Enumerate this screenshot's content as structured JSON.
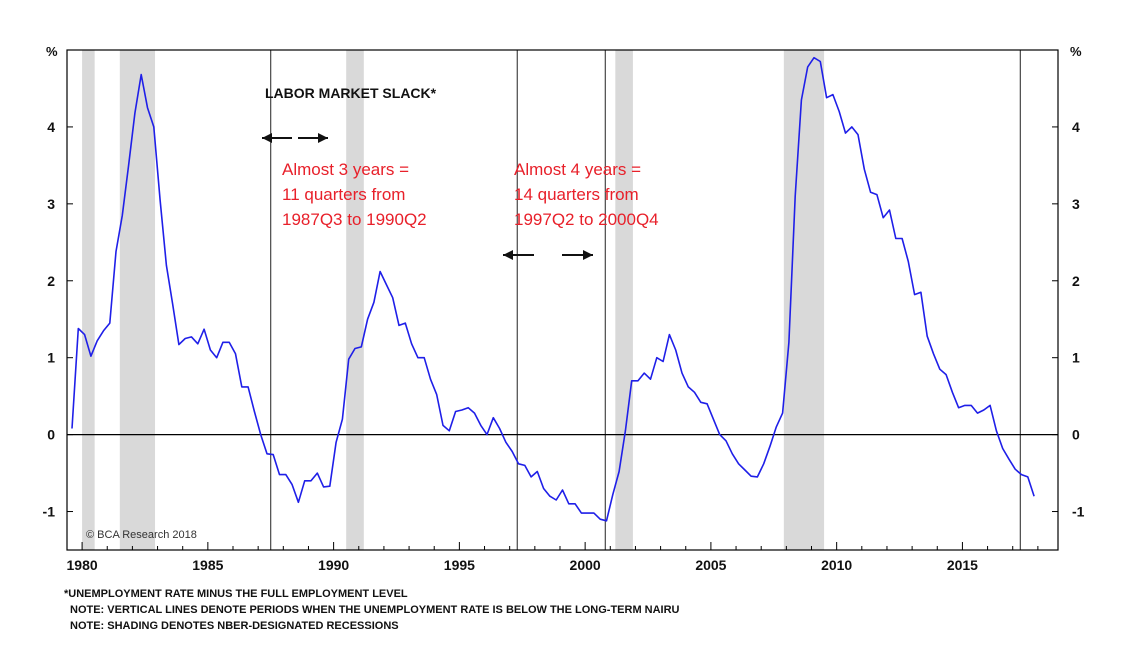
{
  "chart_data": {
    "type": "line",
    "title": "LABOR MARKET SLACK*",
    "y_unit_left": "%",
    "y_unit_right": "%",
    "ylim": [
      -1.5,
      5.0
    ],
    "xlim": [
      1979.4,
      2018.8
    ],
    "yticks": [
      -1,
      0,
      1,
      2,
      3,
      4
    ],
    "xticks": [
      1980,
      1985,
      1990,
      1995,
      2000,
      2005,
      2010,
      2015
    ],
    "grid": false,
    "series": [
      {
        "color": "#1f1fe8",
        "x": [
          1979.6,
          1979.85,
          1980.1,
          1980.35,
          1980.6,
          1980.85,
          1981.1,
          1981.35,
          1981.6,
          1981.85,
          1982.1,
          1982.35,
          1982.6,
          1982.85,
          1983.1,
          1983.35,
          1983.6,
          1983.85,
          1984.1,
          1984.35,
          1984.6,
          1984.85,
          1985.1,
          1985.35,
          1985.6,
          1985.85,
          1986.1,
          1986.35,
          1986.6,
          1986.85,
          1987.1,
          1987.35,
          1987.6,
          1987.85,
          1988.1,
          1988.35,
          1988.6,
          1988.85,
          1989.1,
          1989.35,
          1989.6,
          1989.85,
          1990.1,
          1990.35,
          1990.6,
          1990.85,
          1991.1,
          1991.35,
          1991.6,
          1991.85,
          1992.1,
          1992.35,
          1992.6,
          1992.85,
          1993.1,
          1993.35,
          1993.6,
          1993.85,
          1994.1,
          1994.35,
          1994.6,
          1994.85,
          1995.1,
          1995.35,
          1995.6,
          1995.85,
          1996.1,
          1996.35,
          1996.6,
          1996.85,
          1997.1,
          1997.35,
          1997.6,
          1997.85,
          1998.1,
          1998.35,
          1998.6,
          1998.85,
          1999.1,
          1999.35,
          1999.6,
          1999.85,
          2000.1,
          2000.35,
          2000.6,
          2000.85,
          2001.1,
          2001.35,
          2001.6,
          2001.85,
          2002.1,
          2002.35,
          2002.6,
          2002.85,
          2003.1,
          2003.35,
          2003.6,
          2003.85,
          2004.1,
          2004.35,
          2004.6,
          2004.85,
          2005.1,
          2005.35,
          2005.6,
          2005.85,
          2006.1,
          2006.35,
          2006.6,
          2006.85,
          2007.1,
          2007.35,
          2007.6,
          2007.85,
          2008.1,
          2008.35,
          2008.6,
          2008.85,
          2009.1,
          2009.35,
          2009.6,
          2009.85,
          2010.1,
          2010.35,
          2010.6,
          2010.85,
          2011.1,
          2011.35,
          2011.6,
          2011.85,
          2012.1,
          2012.35,
          2012.6,
          2012.85,
          2013.1,
          2013.35,
          2013.6,
          2013.85,
          2014.1,
          2014.35,
          2014.6,
          2014.85,
          2015.1,
          2015.35,
          2015.6,
          2015.85,
          2016.1,
          2016.35,
          2016.6,
          2016.85,
          2017.1,
          2017.35,
          2017.6,
          2017.85
        ],
        "y": [
          0.08,
          1.38,
          1.3,
          1.02,
          1.22,
          1.35,
          1.45,
          2.38,
          2.85,
          3.5,
          4.18,
          4.68,
          4.25,
          4.0,
          3.05,
          2.2,
          1.7,
          1.17,
          1.25,
          1.27,
          1.18,
          1.37,
          1.1,
          1.0,
          1.2,
          1.2,
          1.05,
          0.62,
          0.62,
          0.3,
          0.0,
          -0.25,
          -0.26,
          -0.52,
          -0.52,
          -0.65,
          -0.88,
          -0.6,
          -0.6,
          -0.5,
          -0.68,
          -0.67,
          -0.1,
          0.2,
          0.98,
          1.12,
          1.14,
          1.5,
          1.72,
          2.12,
          1.95,
          1.78,
          1.42,
          1.45,
          1.18,
          1.0,
          1.0,
          0.72,
          0.52,
          0.12,
          0.05,
          0.3,
          0.32,
          0.35,
          0.28,
          0.12,
          0.0,
          0.22,
          0.08,
          -0.1,
          -0.22,
          -0.38,
          -0.4,
          -0.55,
          -0.48,
          -0.7,
          -0.8,
          -0.85,
          -0.72,
          -0.9,
          -0.9,
          -1.02,
          -1.02,
          -1.02,
          -1.1,
          -1.12,
          -0.78,
          -0.48,
          0.05,
          0.7,
          0.7,
          0.8,
          0.72,
          1.0,
          0.95,
          1.3,
          1.1,
          0.8,
          0.62,
          0.55,
          0.42,
          0.4,
          0.2,
          0.0,
          -0.08,
          -0.25,
          -0.38,
          -0.46,
          -0.54,
          -0.55,
          -0.38,
          -0.15,
          0.1,
          0.28,
          1.2,
          3.1,
          4.35,
          4.78,
          4.9,
          4.85,
          4.38,
          4.42,
          4.2,
          3.92,
          4.0,
          3.9,
          3.45,
          3.15,
          3.12,
          2.82,
          2.92,
          2.55,
          2.55,
          2.25,
          1.82,
          1.85,
          1.28,
          1.05,
          0.85,
          0.78,
          0.55,
          0.35,
          0.38,
          0.38,
          0.28,
          0.32,
          0.38,
          0.05,
          -0.18,
          -0.32,
          -0.45,
          -0.52,
          -0.55,
          -0.8
        ]
      }
    ],
    "recessions": [
      [
        1980.0,
        1980.5
      ],
      [
        1981.5,
        1982.9
      ],
      [
        1990.5,
        1991.2
      ],
      [
        2001.2,
        2001.9
      ],
      [
        2007.9,
        2009.5
      ]
    ],
    "below_nairu_lines": [
      1987.5,
      1997.3,
      2000.8,
      2017.3
    ],
    "annotations": [
      {
        "lines": [
          "Almost 3 years =",
          "11 quarters from",
          "1987Q3 to 1990Q2"
        ],
        "color": "#e8202a"
      },
      {
        "lines": [
          "Almost 4 years =",
          "14 quarters from",
          "1997Q2 to 2000Q4"
        ],
        "color": "#e8202a"
      }
    ]
  },
  "copyright": "© BCA Research 2018",
  "footnotes": [
    "*UNEMPLOYMENT RATE MINUS THE FULL EMPLOYMENT LEVEL",
    "NOTE: VERTICAL LINES DENOTE PERIODS WHEN THE UNEMPLOYMENT RATE IS BELOW THE LONG-TERM NAIRU",
    "NOTE: SHADING DENOTES NBER-DESIGNATED RECESSIONS"
  ]
}
